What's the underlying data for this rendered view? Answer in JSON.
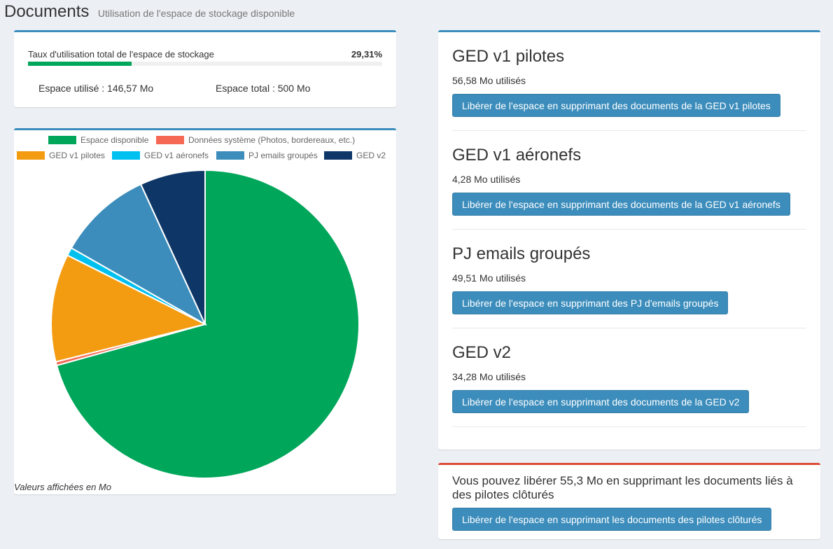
{
  "header": {
    "title": "Documents",
    "subtitle": "Utilisation de l'espace de stockage disponible"
  },
  "usage": {
    "label": "Taux d'utilisation total de l'espace de stockage",
    "percent_label": "29,31%",
    "percent_value": 29.31,
    "used_label": "Espace utilisé : 146,57 Mo",
    "total_label": "Espace total : 500 Mo",
    "bar_color": "#00a65a"
  },
  "chart_data": {
    "type": "pie",
    "series": [
      {
        "name": "Espace disponible",
        "value": 353.43,
        "color": "#00a65a"
      },
      {
        "name": "Données système (Photos, bordereaux, etc.)",
        "value": 1.92,
        "color": "#f56954"
      },
      {
        "name": "GED v1 pilotes",
        "value": 56.58,
        "color": "#f39c12"
      },
      {
        "name": "GED v1 aéronefs",
        "value": 4.28,
        "color": "#00c0ef"
      },
      {
        "name": "PJ emails groupés",
        "value": 49.51,
        "color": "#3c8dbc"
      },
      {
        "name": "GED v2",
        "value": 34.28,
        "color": "#0e3768"
      }
    ],
    "legend_position": "top",
    "note": "Valeurs affichées en Mo"
  },
  "modules": [
    {
      "title": "GED v1 pilotes",
      "used": "56,58 Mo utilisés",
      "button": "Libérer de l'espace en supprimant des documents de la GED v1 pilotes"
    },
    {
      "title": "GED v1 aéronefs",
      "used": "4,28 Mo utilisés",
      "button": "Libérer de l'espace en supprimant des documents de la GED v1 aéronefs"
    },
    {
      "title": "PJ emails groupés",
      "used": "49,51 Mo utilisés",
      "button": "Libérer de l'espace en supprimant des PJ d'emails groupés"
    },
    {
      "title": "GED v2",
      "used": "34,28 Mo utilisés",
      "button": "Libérer de l'espace en supprimant des documents de la GED v2"
    }
  ],
  "closed_pilots": {
    "text": "Vous pouvez libérer 55,3 Mo en supprimant les documents liés à des pilotes clôturés",
    "button": "Libérer de l'espace en supprimant les documents des pilotes clôturés"
  },
  "colors": {
    "primary": "#3c8dbc",
    "danger": "#dd4b39",
    "background": "#ecf0f5"
  }
}
